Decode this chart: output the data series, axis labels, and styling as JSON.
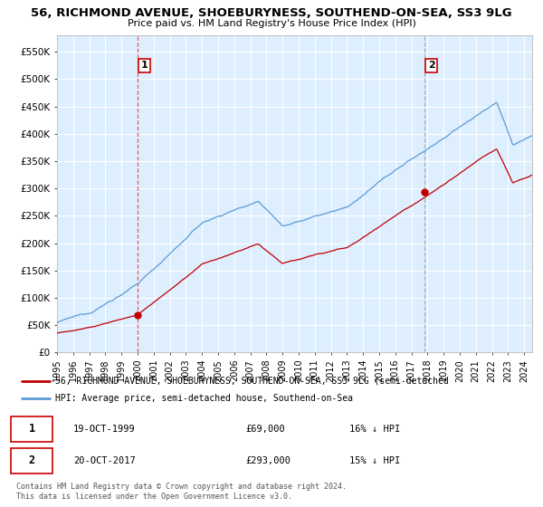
{
  "title": "56, RICHMOND AVENUE, SHOEBURYNESS, SOUTHEND-ON-SEA, SS3 9LG",
  "subtitle": "Price paid vs. HM Land Registry's House Price Index (HPI)",
  "ylabel_ticks": [
    "£0",
    "£50K",
    "£100K",
    "£150K",
    "£200K",
    "£250K",
    "£300K",
    "£350K",
    "£400K",
    "£450K",
    "£500K",
    "£550K"
  ],
  "ytick_values": [
    0,
    50000,
    100000,
    150000,
    200000,
    250000,
    300000,
    350000,
    400000,
    450000,
    500000,
    550000
  ],
  "ylim": [
    0,
    580000
  ],
  "transaction1": {
    "date_str": "19-OCT-1999",
    "price": 69000,
    "label": "1",
    "year": 2000.0
  },
  "transaction2": {
    "date_str": "20-OCT-2017",
    "price": 293000,
    "label": "2",
    "year": 2017.83
  },
  "legend_line1": "56, RICHMOND AVENUE, SHOEBURYNESS, SOUTHEND-ON-SEA, SS3 9LG (semi-detached",
  "legend_line2": "HPI: Average price, semi-detached house, Southend-on-Sea",
  "table_row1": [
    "1",
    "19-OCT-1999",
    "£69,000",
    "16% ↓ HPI"
  ],
  "table_row2": [
    "2",
    "20-OCT-2017",
    "£293,000",
    "15% ↓ HPI"
  ],
  "footer1": "Contains HM Land Registry data © Crown copyright and database right 2024.",
  "footer2": "This data is licensed under the Open Government Licence v3.0.",
  "hpi_color": "#5b9bd5",
  "price_color": "#c00000",
  "vline1_color": "#e06060",
  "vline2_color": "#aaaaaa",
  "bg_color": "#ffffff",
  "plot_bg_color": "#ddeeff",
  "grid_color": "#ffffff",
  "start_year": 1995.0,
  "end_year": 2024.5
}
